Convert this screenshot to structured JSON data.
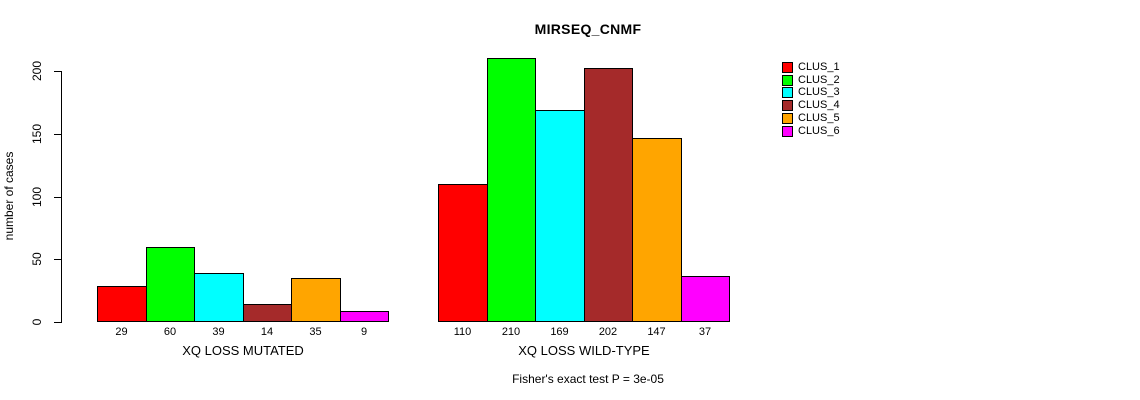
{
  "chart_data": {
    "type": "bar",
    "title": "MIRSEQ_CNMF",
    "xlabel": "",
    "ylabel": "number of cases",
    "categories": [
      "XQ LOSS MUTATED",
      "XQ LOSS WILD-TYPE"
    ],
    "series": [
      {
        "name": "CLUS_1",
        "color": "#ff0000",
        "values": [
          29,
          110
        ]
      },
      {
        "name": "CLUS_2",
        "color": "#00ff00",
        "values": [
          60,
          210
        ]
      },
      {
        "name": "CLUS_3",
        "color": "#00ffff",
        "values": [
          39,
          169
        ]
      },
      {
        "name": "CLUS_4",
        "color": "#a52a2a",
        "values": [
          14,
          202
        ]
      },
      {
        "name": "CLUS_5",
        "color": "#ffa500",
        "values": [
          35,
          147
        ]
      },
      {
        "name": "CLUS_6",
        "color": "#ff00ff",
        "values": [
          9,
          37
        ]
      }
    ],
    "bar_value_labels": true,
    "ylim": [
      0,
      210
    ],
    "yticks": [
      0,
      50,
      100,
      150,
      200
    ],
    "grid": false,
    "legend_position": "right",
    "annotation": "Fisher's exact test P = 3e-05"
  }
}
